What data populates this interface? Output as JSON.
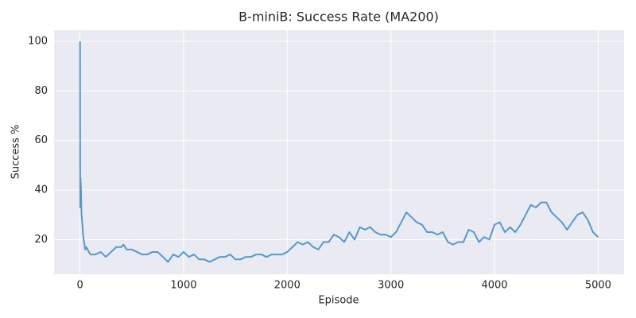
{
  "chart_data": {
    "type": "line",
    "title": "B-miniB: Success Rate (MA200)",
    "x_label": "Episode",
    "y_label": "Success %",
    "x": [
      1,
      2,
      3,
      5,
      10,
      15,
      20,
      30,
      40,
      50,
      60,
      100,
      150,
      200,
      250,
      300,
      350,
      400,
      420,
      450,
      500,
      550,
      600,
      650,
      700,
      750,
      800,
      850,
      900,
      950,
      1000,
      1050,
      1100,
      1150,
      1200,
      1250,
      1300,
      1350,
      1400,
      1450,
      1500,
      1550,
      1600,
      1650,
      1700,
      1750,
      1800,
      1850,
      1900,
      1950,
      2000,
      2050,
      2100,
      2150,
      2200,
      2250,
      2300,
      2350,
      2400,
      2450,
      2500,
      2550,
      2600,
      2650,
      2700,
      2750,
      2800,
      2850,
      2900,
      2950,
      3000,
      3050,
      3100,
      3150,
      3200,
      3250,
      3300,
      3350,
      3400,
      3450,
      3500,
      3550,
      3600,
      3650,
      3700,
      3750,
      3800,
      3850,
      3900,
      3950,
      4000,
      4050,
      4100,
      4150,
      4200,
      4250,
      4300,
      4350,
      4400,
      4450,
      4500,
      4550,
      4600,
      4650,
      4700,
      4750,
      4800,
      4850,
      4900,
      4950,
      5000
    ],
    "series": [
      {
        "name": "Success %",
        "color": "#5799c6",
        "values": [
          100,
          50,
          33,
          45,
          40,
          30,
          28,
          22,
          19,
          16,
          17,
          14,
          14,
          15,
          13,
          15,
          17,
          17,
          18,
          16,
          16,
          15,
          14,
          14,
          15,
          15,
          13,
          11,
          14,
          13,
          15,
          13,
          14,
          12,
          12,
          11,
          12,
          13,
          13,
          14,
          12,
          12,
          13,
          13,
          14,
          14,
          13,
          14,
          14,
          14,
          15,
          17,
          19,
          18,
          19,
          17,
          16,
          19,
          19,
          22,
          21,
          19,
          23,
          20,
          25,
          24,
          25,
          23,
          22,
          22,
          21,
          23,
          27,
          31,
          29,
          27,
          26,
          23,
          23,
          22,
          23,
          19,
          18,
          19,
          19,
          24,
          23,
          19,
          21,
          20,
          26,
          27,
          23,
          25,
          23,
          26,
          30,
          34,
          33,
          35,
          35,
          31,
          29,
          27,
          24,
          27,
          30,
          31,
          28,
          23,
          21
        ]
      }
    ],
    "xlim": [
      -250,
      5250
    ],
    "ylim": [
      6,
      104.5
    ],
    "xticks": [
      0,
      1000,
      2000,
      3000,
      4000,
      5000
    ],
    "yticks": [
      20,
      40,
      60,
      80,
      100
    ],
    "grid": true
  }
}
